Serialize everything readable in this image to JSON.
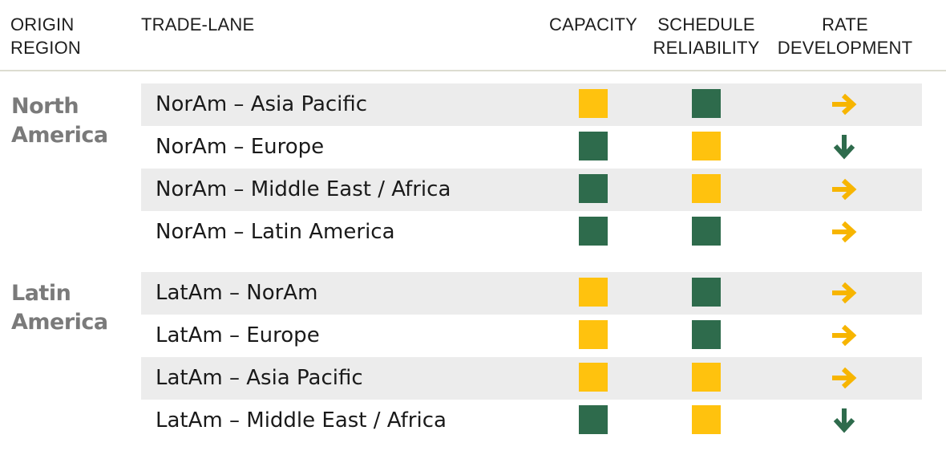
{
  "header": {
    "origin_region": "ORIGIN\nREGION",
    "trade_lane": "TRADE-LANE",
    "capacity": "CAPACITY",
    "schedule_reliability": "SCHEDULE\nRELIABILITY",
    "rate_development": "RATE\nDEVELOPMENT"
  },
  "legend_colors": {
    "yellow": "#ffc20e",
    "green": "#2e6b4c",
    "yellow_arrow": "#f7b500",
    "green_arrow": "#2e6b4c"
  },
  "groups": [
    {
      "region": "North\nAmerica",
      "rows": [
        {
          "lane": "NorAm – Asia Pacific",
          "capacity": "yellow",
          "reliability": "green",
          "rate": "right",
          "rate_color": "yellow"
        },
        {
          "lane": "NorAm – Europe",
          "capacity": "green",
          "reliability": "yellow",
          "rate": "down",
          "rate_color": "green"
        },
        {
          "lane": "NorAm – Middle East / Africa",
          "capacity": "green",
          "reliability": "yellow",
          "rate": "right",
          "rate_color": "yellow"
        },
        {
          "lane": "NorAm – Latin America",
          "capacity": "green",
          "reliability": "green",
          "rate": "right",
          "rate_color": "yellow"
        }
      ]
    },
    {
      "region": "Latin\nAmerica",
      "rows": [
        {
          "lane": "LatAm – NorAm",
          "capacity": "yellow",
          "reliability": "green",
          "rate": "right",
          "rate_color": "yellow"
        },
        {
          "lane": "LatAm – Europe",
          "capacity": "yellow",
          "reliability": "green",
          "rate": "right",
          "rate_color": "yellow"
        },
        {
          "lane": "LatAm – Asia Pacific",
          "capacity": "yellow",
          "reliability": "yellow",
          "rate": "right",
          "rate_color": "yellow"
        },
        {
          "lane": "LatAm – Middle East / Africa",
          "capacity": "green",
          "reliability": "yellow",
          "rate": "down",
          "rate_color": "green"
        }
      ]
    }
  ]
}
